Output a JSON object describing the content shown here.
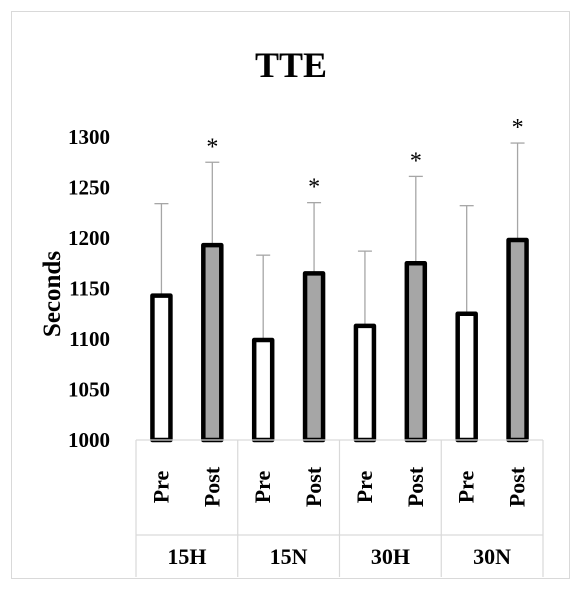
{
  "chart_data": {
    "type": "bar",
    "title": "TTE",
    "ylabel": "Seconds",
    "xlabel": "",
    "ylim": [
      1000,
      1300
    ],
    "yticks": [
      1000,
      1050,
      1100,
      1150,
      1200,
      1250,
      1300
    ],
    "groups": [
      "15H",
      "15N",
      "30H",
      "30N"
    ],
    "categories": [
      "Pre",
      "Post",
      "Pre",
      "Post",
      "Pre",
      "Post",
      "Pre",
      "Post"
    ],
    "values": [
      1143,
      1193,
      1099,
      1165,
      1113,
      1175,
      1125,
      1198
    ],
    "error_upper": [
      1234,
      1275,
      1183,
      1235,
      1187,
      1261,
      1232,
      1294
    ],
    "significance": [
      "",
      "*",
      "",
      "*",
      "",
      "*",
      "",
      "*"
    ],
    "colors": {
      "pre_fill": "#ffffff",
      "post_fill": "#a6a6a6",
      "bar_stroke": "#000000",
      "error_bar": "#a6a6a6",
      "axis": "#d9d9d9"
    },
    "grid": false,
    "legend": "none"
  }
}
